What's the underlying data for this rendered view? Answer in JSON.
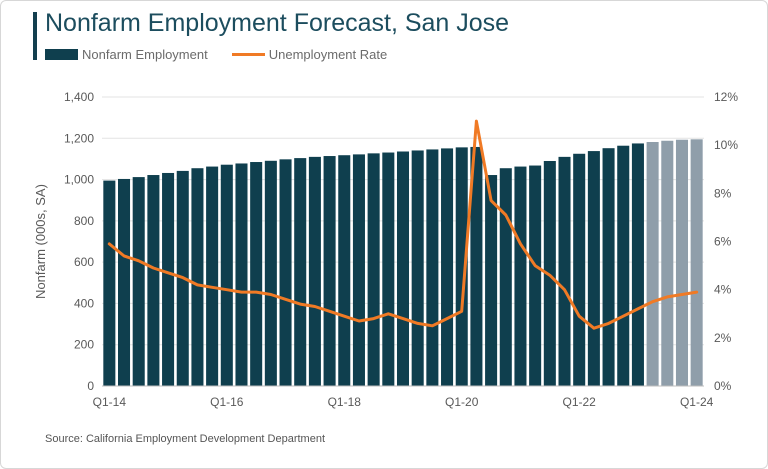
{
  "title": "Nonfarm Employment Forecast, San Jose",
  "source": "Source: California Employment Development Department",
  "chart_data": {
    "type": "bar",
    "title": "Nonfarm Employment Forecast, San Jose",
    "ylabel": "Nonfarm (000s, SA)",
    "y2label": "",
    "ylim": [
      0,
      1400
    ],
    "y2lim": [
      0,
      12
    ],
    "y_ticks": [
      "0",
      "200",
      "400",
      "600",
      "800",
      "1,000",
      "1,200",
      "1,400"
    ],
    "y2_ticks": [
      "0%",
      "2%",
      "4%",
      "6%",
      "8%",
      "10%",
      "12%"
    ],
    "grid": true,
    "legend_position": "top-left",
    "x_tick_labels": [
      "Q1-14",
      "Q1-16",
      "Q1-18",
      "Q1-20",
      "Q1-22",
      "Q1-24"
    ],
    "categories": [
      "Q1-14",
      "Q2-14",
      "Q3-14",
      "Q4-14",
      "Q1-15",
      "Q2-15",
      "Q3-15",
      "Q4-15",
      "Q1-16",
      "Q2-16",
      "Q3-16",
      "Q4-16",
      "Q1-17",
      "Q2-17",
      "Q3-17",
      "Q4-17",
      "Q1-18",
      "Q2-18",
      "Q3-18",
      "Q4-18",
      "Q1-19",
      "Q2-19",
      "Q3-19",
      "Q4-19",
      "Q1-20",
      "Q2-20",
      "Q3-20",
      "Q4-20",
      "Q1-21",
      "Q2-21",
      "Q3-21",
      "Q4-21",
      "Q1-22",
      "Q2-22",
      "Q3-22",
      "Q4-22",
      "Q1-23",
      "Q2-23",
      "Q3-23",
      "Q4-23",
      "Q1-24"
    ],
    "forecast_start": "Q2-23",
    "colors": {
      "actual": "#0f3f4e",
      "forecast": "#8f9eaa",
      "rate": "#f07a25",
      "grid": "#e3e3e3"
    },
    "series": [
      {
        "name": "Nonfarm Employment",
        "type": "bar",
        "axis": "left",
        "values": [
          995,
          1003,
          1012,
          1022,
          1032,
          1042,
          1055,
          1063,
          1072,
          1078,
          1085,
          1091,
          1098,
          1104,
          1110,
          1114,
          1118,
          1122,
          1127,
          1131,
          1136,
          1141,
          1146,
          1151,
          1156,
          1158,
          1022,
          1055,
          1063,
          1068,
          1090,
          1110,
          1125,
          1138,
          1152,
          1164,
          1175,
          1182,
          1188,
          1193,
          1195
        ]
      },
      {
        "name": "Unemployment Rate",
        "type": "line",
        "axis": "right",
        "values": [
          5.9,
          5.4,
          5.2,
          4.9,
          4.7,
          4.5,
          4.2,
          4.1,
          4.0,
          3.9,
          3.9,
          3.8,
          3.6,
          3.4,
          3.3,
          3.1,
          2.9,
          2.7,
          2.8,
          3.0,
          2.8,
          2.6,
          2.5,
          2.8,
          3.1,
          11.0,
          7.7,
          7.1,
          5.9,
          5.0,
          4.6,
          4.0,
          2.9,
          2.4,
          2.6,
          2.9,
          3.2,
          3.5,
          3.7,
          3.8,
          3.9
        ]
      }
    ]
  }
}
